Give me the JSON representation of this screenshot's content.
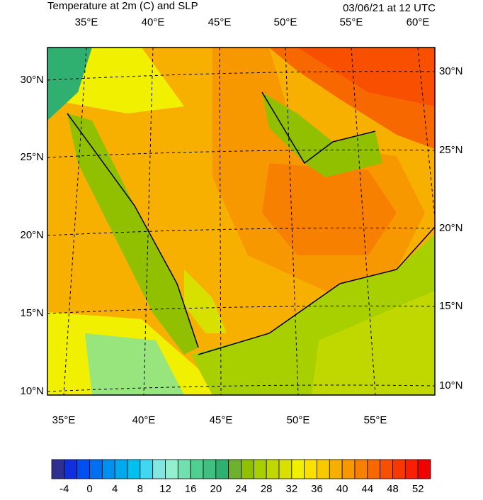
{
  "header": {
    "title": "Temperature at 2m (C) and SLP",
    "time": "03/06/21 at 12 UTC"
  },
  "map": {
    "top_lon_labels": [
      "35°E",
      "40°E",
      "45°E",
      "50°E",
      "55°E",
      "60°E"
    ],
    "bottom_lon_labels": [
      "35°E",
      "40°E",
      "45°E",
      "50°E",
      "55°E"
    ],
    "left_lat_labels": [
      "30°N",
      "25°N",
      "20°N",
      "15°N",
      "10°N"
    ],
    "right_lat_labels": [
      "30°N",
      "25°N",
      "20°N",
      "15°N",
      "10°N"
    ]
  },
  "colorbar": {
    "lim": [
      -6,
      54
    ],
    "levels": [
      -4,
      0,
      4,
      8,
      12,
      16,
      20,
      24,
      28,
      32,
      36,
      40,
      44,
      48,
      52
    ],
    "colors": [
      "#303090",
      "#1030e0",
      "#0050f0",
      "#0070f0",
      "#0090f0",
      "#00a8f0",
      "#00c0f0",
      "#40d8f0",
      "#80e8e0",
      "#90f0d0",
      "#70e0b0",
      "#50d090",
      "#40c080",
      "#30b070",
      "#70b030",
      "#90c000",
      "#a8d000",
      "#c0d800",
      "#d8e000",
      "#f0f000",
      "#f8e000",
      "#f8c800",
      "#f8b000",
      "#f89800",
      "#f88000",
      "#f86800",
      "#f85000",
      "#f83800",
      "#f82000",
      "#f00000"
    ]
  }
}
